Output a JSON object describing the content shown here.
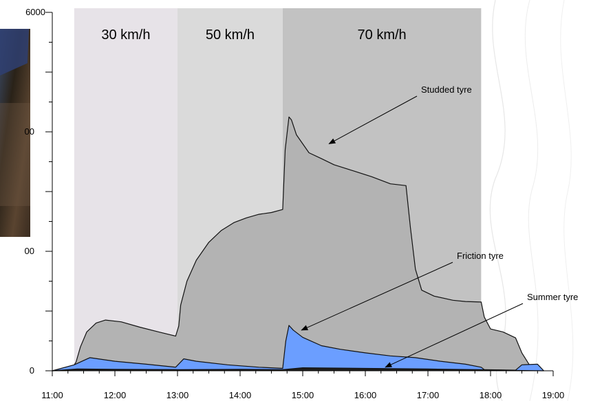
{
  "chart_data": {
    "type": "area",
    "title": "",
    "xlabel": "",
    "ylabel": "",
    "xlim": [
      11,
      19
    ],
    "ylim": [
      0,
      6000
    ],
    "x_ticks": [
      "11:00",
      "12:00",
      "13:00",
      "14:00",
      "15:00",
      "16:00",
      "17:00",
      "18:00",
      "19:00"
    ],
    "y_ticks_visible": [
      "6000",
      "00",
      "00",
      "0"
    ],
    "speed_bands": [
      {
        "label": "30 km/h",
        "start": 11.35,
        "end": 13.0,
        "color": "#e7e3e8"
      },
      {
        "label": "50 km/h",
        "start": 13.0,
        "end": 14.68,
        "color": "#dadada"
      },
      {
        "label": "70 km/h",
        "start": 14.68,
        "end": 17.85,
        "color": "#c2c2c2"
      }
    ],
    "series": [
      {
        "name": "Studded tyre",
        "color": "#b3b3b3",
        "points": [
          [
            11.0,
            0
          ],
          [
            11.3,
            10
          ],
          [
            11.38,
            150
          ],
          [
            11.45,
            400
          ],
          [
            11.55,
            650
          ],
          [
            11.7,
            800
          ],
          [
            11.85,
            850
          ],
          [
            12.1,
            820
          ],
          [
            12.4,
            730
          ],
          [
            12.7,
            650
          ],
          [
            12.97,
            580
          ],
          [
            13.02,
            750
          ],
          [
            13.05,
            1100
          ],
          [
            13.15,
            1500
          ],
          [
            13.3,
            1850
          ],
          [
            13.5,
            2150
          ],
          [
            13.7,
            2350
          ],
          [
            13.9,
            2480
          ],
          [
            14.1,
            2560
          ],
          [
            14.3,
            2620
          ],
          [
            14.5,
            2650
          ],
          [
            14.68,
            2700
          ],
          [
            14.72,
            3700
          ],
          [
            14.78,
            4250
          ],
          [
            14.82,
            4200
          ],
          [
            14.9,
            3950
          ],
          [
            15.1,
            3650
          ],
          [
            15.3,
            3550
          ],
          [
            15.5,
            3450
          ],
          [
            15.8,
            3350
          ],
          [
            16.1,
            3250
          ],
          [
            16.4,
            3130
          ],
          [
            16.65,
            3100
          ],
          [
            16.72,
            2400
          ],
          [
            16.8,
            1700
          ],
          [
            16.9,
            1350
          ],
          [
            17.1,
            1250
          ],
          [
            17.4,
            1180
          ],
          [
            17.6,
            1160
          ],
          [
            17.85,
            1150
          ],
          [
            17.9,
            900
          ],
          [
            18.0,
            700
          ],
          [
            18.2,
            650
          ],
          [
            18.4,
            550
          ],
          [
            18.5,
            300
          ],
          [
            18.62,
            100
          ],
          [
            18.7,
            0
          ]
        ]
      },
      {
        "name": "Friction tyre",
        "color": "#6b9eff",
        "points": [
          [
            11.0,
            0
          ],
          [
            11.35,
            100
          ],
          [
            11.6,
            220
          ],
          [
            12.0,
            160
          ],
          [
            12.5,
            110
          ],
          [
            12.97,
            60
          ],
          [
            13.1,
            200
          ],
          [
            13.3,
            160
          ],
          [
            13.8,
            100
          ],
          [
            14.3,
            60
          ],
          [
            14.68,
            40
          ],
          [
            14.73,
            500
          ],
          [
            14.78,
            760
          ],
          [
            14.85,
            680
          ],
          [
            15.0,
            560
          ],
          [
            15.3,
            420
          ],
          [
            15.6,
            360
          ],
          [
            16.0,
            300
          ],
          [
            16.4,
            250
          ],
          [
            16.8,
            220
          ],
          [
            17.2,
            160
          ],
          [
            17.6,
            110
          ],
          [
            17.85,
            60
          ],
          [
            17.9,
            20
          ],
          [
            18.4,
            10
          ],
          [
            18.5,
            100
          ],
          [
            18.75,
            110
          ],
          [
            18.85,
            0
          ]
        ]
      },
      {
        "name": "Summer tyre",
        "color": "#1f1f1f",
        "points": [
          [
            11.0,
            0
          ],
          [
            11.4,
            30
          ],
          [
            12.0,
            25
          ],
          [
            13.0,
            20
          ],
          [
            14.0,
            25
          ],
          [
            14.68,
            20
          ],
          [
            15.0,
            50
          ],
          [
            16.0,
            40
          ],
          [
            17.0,
            30
          ],
          [
            17.85,
            20
          ],
          [
            18.5,
            5
          ],
          [
            18.85,
            0
          ]
        ]
      }
    ],
    "annotations": [
      {
        "text": "Studded tyre",
        "x": 15.42,
        "y": 3800
      },
      {
        "text": "Friction tyre",
        "x": 14.98,
        "y": 680
      },
      {
        "text": "Summer tyre",
        "x": 16.32,
        "y": 60
      }
    ]
  }
}
